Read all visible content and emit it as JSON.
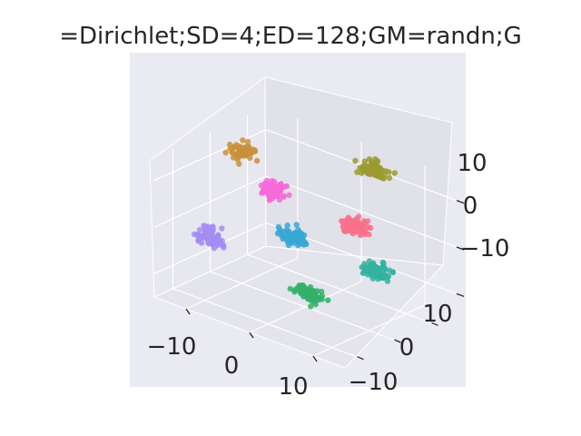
{
  "chart_data": {
    "type": "scatter3d",
    "title": "=Dirichlet;SD=4;ED=128;GM=randn;G",
    "xlabel": "",
    "ylabel": "",
    "zlabel": "",
    "xticks": [
      "−10",
      "0",
      "10"
    ],
    "yticks": [
      "−10",
      "0",
      "10"
    ],
    "zticks": [
      "−10",
      "0",
      "10"
    ],
    "xlim": [
      -15,
      15
    ],
    "ylim": [
      -15,
      15
    ],
    "zlim": [
      -15,
      15
    ],
    "grid": true,
    "background": "#eaeaf2",
    "clusters": [
      {
        "color": "#c9913a",
        "center": [
          -13,
          5,
          10
        ]
      },
      {
        "color": "#9a9a2e",
        "center": [
          4,
          12,
          12
        ]
      },
      {
        "color": "#f46bd9",
        "center": [
          -6,
          2,
          6
        ]
      },
      {
        "color": "#f77189",
        "center": [
          6,
          3,
          4
        ]
      },
      {
        "color": "#36a8d2",
        "center": [
          -2,
          0,
          -1
        ]
      },
      {
        "color": "#33b39f",
        "center": [
          10,
          2,
          -3
        ]
      },
      {
        "color": "#a48cf4",
        "center": [
          -12,
          -5,
          -4
        ]
      },
      {
        "color": "#33b068",
        "center": [
          4,
          -6,
          -8
        ]
      }
    ]
  }
}
